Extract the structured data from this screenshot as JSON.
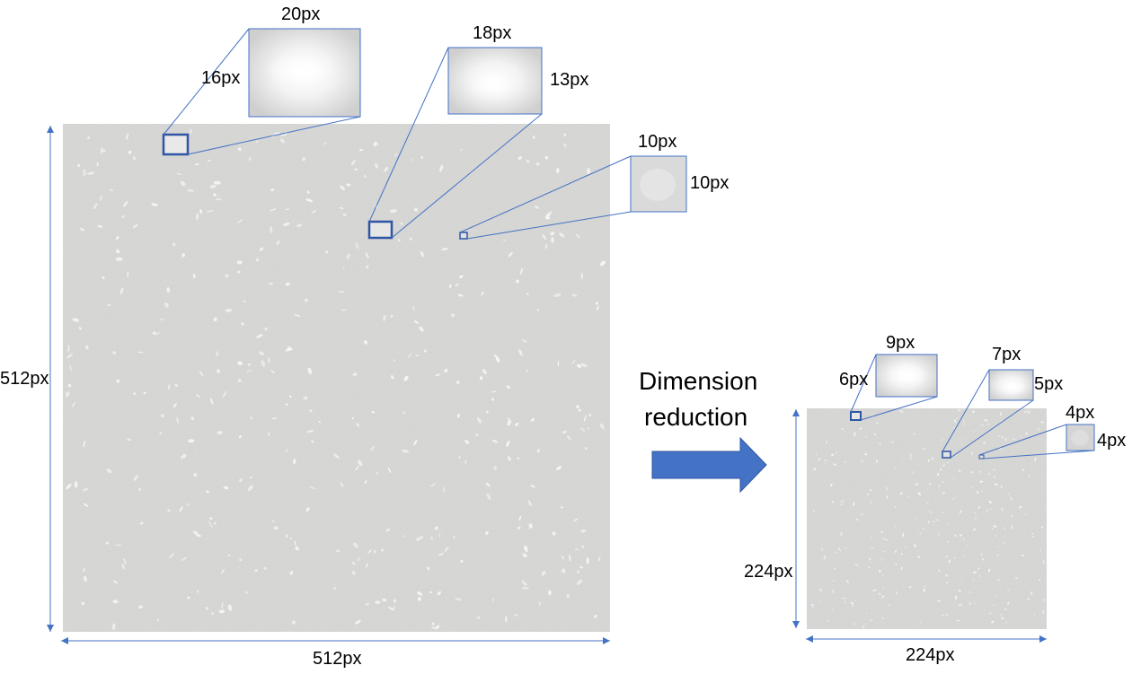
{
  "colors": {
    "accent": "#4472C4",
    "surface": "#d6d6d4",
    "frame": "#2F55A4"
  },
  "large_image": {
    "width_label": "512px",
    "height_label": "512px",
    "zooms": [
      {
        "width_label": "20px",
        "height_label": "16px"
      },
      {
        "width_label": "18px",
        "height_label": "13px"
      },
      {
        "width_label": "10px",
        "height_label": "10px"
      }
    ]
  },
  "arrow": {
    "label_line1": "Dimension",
    "label_line2": "reduction",
    "icon": "right-arrow-icon"
  },
  "small_image": {
    "width_label": "224px",
    "height_label": "224px",
    "zooms": [
      {
        "width_label": "9px",
        "height_label": "6px"
      },
      {
        "width_label": "7px",
        "height_label": "5px"
      },
      {
        "width_label": "4px",
        "height_label": "4px"
      }
    ]
  }
}
